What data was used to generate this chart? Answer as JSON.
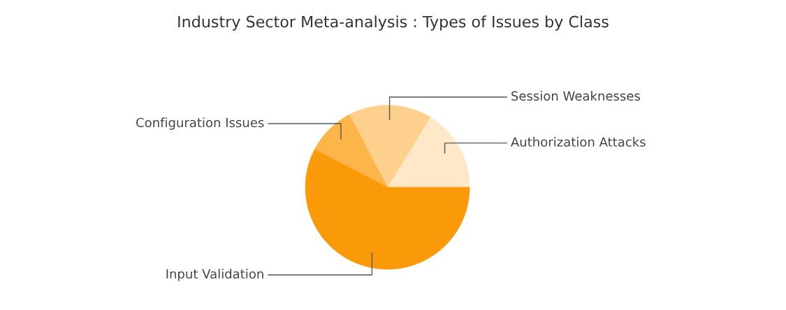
{
  "chart_data": {
    "type": "pie",
    "title": "Industry Sector Meta-analysis : Types of Issues by Class",
    "categories": [
      "Authorization Attacks",
      "Session Weaknesses",
      "Configuration Issues",
      "Input Validation"
    ],
    "values": [
      16.3,
      16.4,
      9.7,
      57.6
    ],
    "colors": [
      "#fee8c8",
      "#fdd08e",
      "#fdb54a",
      "#fb9a08"
    ],
    "legend": false
  }
}
